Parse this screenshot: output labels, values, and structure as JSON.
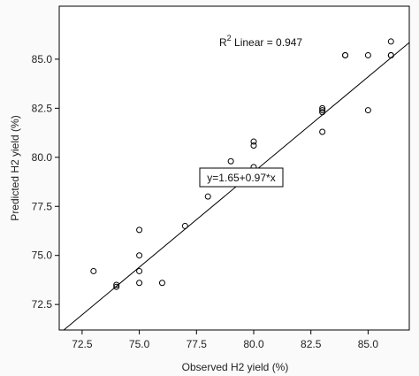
{
  "chart_data": {
    "type": "scatter",
    "title": "",
    "xlabel": "Observed H2 yield (%)",
    "ylabel": "Predicted H2 yield (%)",
    "xlim": [
      71.5,
      86.8
    ],
    "ylim": [
      71.2,
      87.7
    ],
    "x_ticks": [
      72.5,
      75.0,
      77.5,
      80.0,
      82.5,
      85.0
    ],
    "y_ticks": [
      72.5,
      75.0,
      77.5,
      80.0,
      82.5,
      85.0
    ],
    "x_tick_labels": [
      "72.5",
      "75.0",
      "77.5",
      "80.0",
      "82.5",
      "85.0"
    ],
    "y_tick_labels": [
      "72.5",
      "75.0",
      "77.5",
      "80.0",
      "82.5",
      "85.0"
    ],
    "grid": false,
    "points": [
      {
        "x": 73.0,
        "y": 74.2
      },
      {
        "x": 74.0,
        "y": 73.4
      },
      {
        "x": 74.0,
        "y": 73.5
      },
      {
        "x": 75.0,
        "y": 76.3
      },
      {
        "x": 75.0,
        "y": 75.0
      },
      {
        "x": 75.0,
        "y": 74.2
      },
      {
        "x": 75.0,
        "y": 73.6
      },
      {
        "x": 76.0,
        "y": 73.6
      },
      {
        "x": 77.0,
        "y": 76.5
      },
      {
        "x": 78.0,
        "y": 78.0
      },
      {
        "x": 79.0,
        "y": 79.8
      },
      {
        "x": 80.0,
        "y": 80.8
      },
      {
        "x": 80.0,
        "y": 80.6
      },
      {
        "x": 80.0,
        "y": 79.5
      },
      {
        "x": 80.0,
        "y": 79.1
      },
      {
        "x": 83.0,
        "y": 82.5
      },
      {
        "x": 83.0,
        "y": 82.4
      },
      {
        "x": 83.0,
        "y": 82.3
      },
      {
        "x": 83.0,
        "y": 81.3
      },
      {
        "x": 84.0,
        "y": 85.2
      },
      {
        "x": 84.0,
        "y": 85.2
      },
      {
        "x": 85.0,
        "y": 85.2
      },
      {
        "x": 85.0,
        "y": 82.4
      },
      {
        "x": 86.0,
        "y": 85.9
      },
      {
        "x": 86.0,
        "y": 85.2
      },
      {
        "x": 86.0,
        "y": 85.2
      }
    ],
    "fit_line": {
      "intercept": 1.65,
      "slope": 0.97
    },
    "equation_label": "y=1.65+0.97*x",
    "r2_prefix": "R",
    "r2_superscript": "2",
    "r2_text": " Linear = 0.947"
  }
}
